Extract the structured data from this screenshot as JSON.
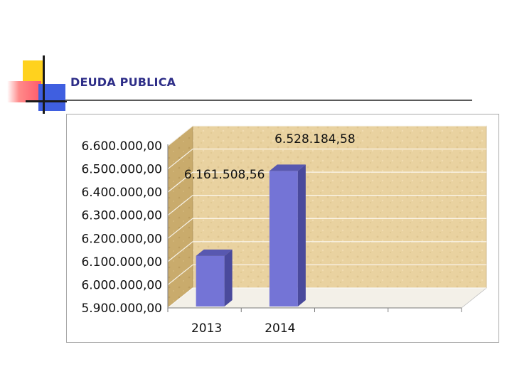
{
  "slide": {
    "title": "DEUDA PUBLICA"
  },
  "colors": {
    "title": "#2e2e88",
    "bar_front": "#7474d6",
    "bar_side": "#4a4a9c",
    "bar_top": "#5858b0",
    "wall": "#e9d2a0",
    "wall_side": "#c9ab6c",
    "floor": "#f3f0e8"
  },
  "chart_data": {
    "type": "bar",
    "title": "",
    "xlabel": "",
    "ylabel": "",
    "categories": [
      "2013",
      "2014"
    ],
    "values": [
      6161508.56,
      6528184.58
    ],
    "value_labels": [
      "6.161.508,56",
      "6.528.184,58"
    ],
    "ylim": [
      5900000,
      6600000
    ],
    "y_ticks": [
      5900000,
      6000000,
      6100000,
      6200000,
      6300000,
      6400000,
      6500000,
      6600000
    ],
    "y_tick_labels": [
      "5.900.000,00",
      "6.000.000,00",
      "6.100.000,00",
      "6.200.000,00",
      "6.300.000,00",
      "6.400.000,00",
      "6.500.000,00",
      "6.600.000,00"
    ],
    "grid": true,
    "legend": "none",
    "style": "3d-column"
  }
}
